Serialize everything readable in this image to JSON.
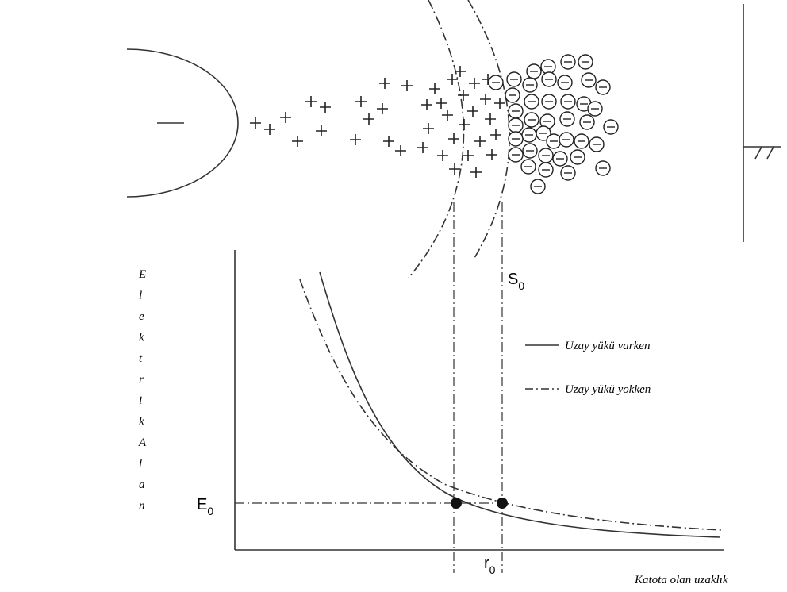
{
  "y_axis_label": "ElektrikAlan",
  "x_axis_label": "Katota olan uzaklık",
  "labels": {
    "s0": {
      "main": "S",
      "sub": "0"
    },
    "e0": {
      "main": "E",
      "sub": "0"
    },
    "r0": {
      "main": "r",
      "sub": "0"
    }
  },
  "legend": [
    "Uzay yükü varken",
    "Uzay yükü yokken"
  ]
}
